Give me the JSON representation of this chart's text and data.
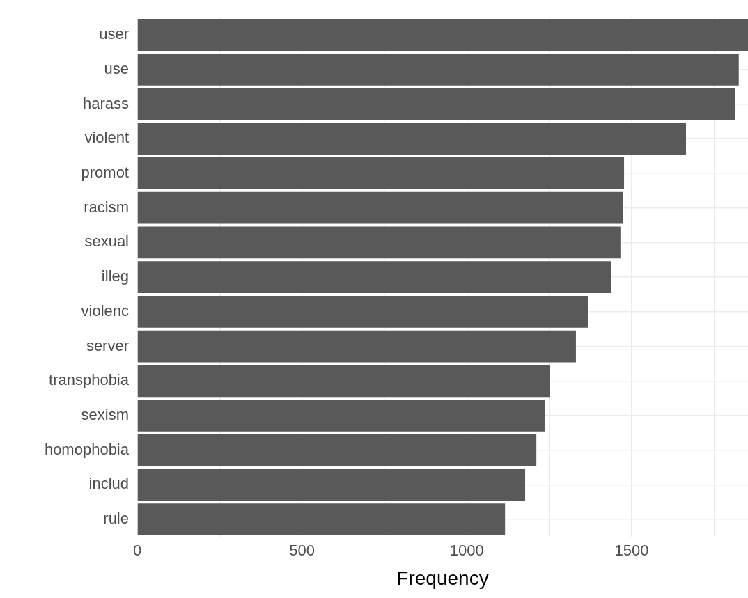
{
  "chart_data": {
    "type": "bar",
    "orientation": "horizontal",
    "xlabel": "Frequency",
    "categories": [
      "user",
      "use",
      "harass",
      "violent",
      "promot",
      "racism",
      "sexual",
      "illeg",
      "violenc",
      "server",
      "transphobia",
      "sexism",
      "homophobia",
      "includ",
      "rule"
    ],
    "values": [
      1853,
      1825,
      1815,
      1665,
      1477,
      1473,
      1466,
      1437,
      1367,
      1331,
      1251,
      1236,
      1211,
      1177,
      1116
    ],
    "color": "#595959",
    "xlim": [
      0,
      1853
    ],
    "xticks": [
      0,
      {
        "value": 250,
        "label": null
      },
      500,
      {
        "value": 750,
        "label": null
      },
      1000,
      {
        "value": 1250,
        "label": null
      },
      1500,
      {
        "value": 1750,
        "label": null
      }
    ],
    "grid": true,
    "legend": false
  }
}
